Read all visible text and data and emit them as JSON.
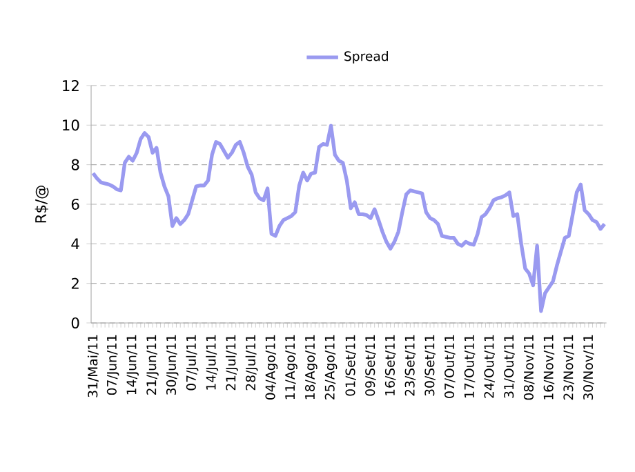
{
  "chart_data": {
    "type": "line",
    "ylabel": "R$/@",
    "legend": "top",
    "grid": "y",
    "marker": "none",
    "line_style": "solid",
    "ylim": [
      0,
      12
    ],
    "yticks": [
      0,
      2,
      4,
      6,
      8,
      10,
      12
    ],
    "categories": [
      "31/Mai/11",
      null,
      null,
      null,
      null,
      "07/Jun/11",
      null,
      null,
      null,
      null,
      "14/Jun/11",
      null,
      null,
      null,
      null,
      "21/Jun/11",
      null,
      null,
      null,
      null,
      "30/Jun/11",
      null,
      null,
      null,
      null,
      "07/Jul/11",
      null,
      null,
      null,
      null,
      "14/Jul/11",
      null,
      null,
      null,
      null,
      "21/Jul/11",
      null,
      null,
      null,
      null,
      "28/Jul/11",
      null,
      null,
      null,
      null,
      "04/Ago/11",
      null,
      null,
      null,
      null,
      "11/Ago/11",
      null,
      null,
      null,
      null,
      "18/Ago/11",
      null,
      null,
      null,
      null,
      "25/Ago/11",
      null,
      null,
      null,
      null,
      "01/Set/11",
      null,
      null,
      null,
      null,
      "09/Set/11",
      null,
      null,
      null,
      null,
      "16/Set/11",
      null,
      null,
      null,
      null,
      "23/Set/11",
      null,
      null,
      null,
      null,
      "30/Set/11",
      null,
      null,
      null,
      null,
      "07/Out/11",
      null,
      null,
      null,
      null,
      "17/Out/11",
      null,
      null,
      null,
      null,
      "24/Out/11",
      null,
      null,
      null,
      null,
      "31/Out/11",
      null,
      null,
      null,
      null,
      "08/Nov/11",
      null,
      null,
      null,
      null,
      "16/Nov/11",
      null,
      null,
      null,
      null,
      "23/Nov/11",
      null,
      null,
      null,
      null,
      "30/Nov/11",
      null,
      null,
      null,
      null
    ],
    "series": [
      {
        "name": "Spread",
        "color": "#9a9af0",
        "values": [
          7.57,
          7.3,
          7.1,
          7.05,
          7.0,
          6.9,
          6.75,
          6.7,
          8.1,
          8.4,
          8.2,
          8.6,
          9.3,
          9.6,
          9.4,
          8.6,
          8.85,
          7.6,
          6.9,
          6.4,
          4.9,
          5.3,
          5.0,
          5.2,
          5.5,
          6.2,
          6.9,
          6.95,
          6.95,
          7.2,
          8.5,
          9.15,
          9.05,
          8.7,
          8.35,
          8.6,
          9.0,
          9.15,
          8.6,
          7.9,
          7.5,
          6.6,
          6.3,
          6.2,
          6.8,
          4.5,
          4.4,
          4.9,
          5.2,
          5.3,
          5.4,
          5.6,
          6.95,
          7.6,
          7.2,
          7.55,
          7.6,
          8.9,
          9.05,
          9.0,
          9.97,
          8.5,
          8.2,
          8.1,
          7.2,
          5.8,
          6.1,
          5.5,
          5.5,
          5.45,
          5.3,
          5.75,
          5.2,
          4.6,
          4.1,
          3.75,
          4.1,
          4.6,
          5.6,
          6.5,
          6.7,
          6.65,
          6.6,
          6.55,
          5.6,
          5.3,
          5.2,
          5.0,
          4.4,
          4.35,
          4.3,
          4.3,
          4.0,
          3.9,
          4.1,
          4.0,
          3.95,
          4.5,
          5.35,
          5.5,
          5.8,
          6.2,
          6.3,
          6.35,
          6.45,
          6.6,
          5.4,
          5.5,
          4.0,
          2.75,
          2.5,
          1.9,
          3.9,
          0.6,
          1.5,
          1.8,
          2.1,
          2.9,
          3.6,
          4.3,
          4.4,
          5.5,
          6.6,
          7.0,
          5.7,
          5.5,
          5.2,
          5.1,
          4.75,
          5.0
        ]
      }
    ]
  }
}
